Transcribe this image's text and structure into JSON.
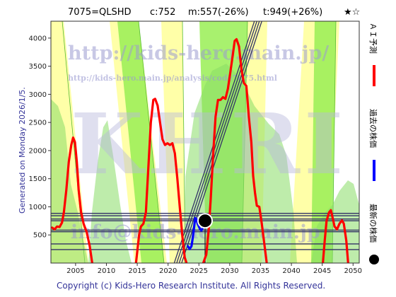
{
  "header": {
    "code": "7075=QLSHD",
    "current": "c:752",
    "min": "m:557(-26%)",
    "target": "t:949(+26%)",
    "rating": "★☆"
  },
  "side_text": "Generated on Monday 2026/1/5.",
  "footer": "Copyright (c) Kids-Hero Research Institute. All Rights Reserved.",
  "watermark": {
    "url": "http://kids-hero.main.jp/",
    "page_url": "http://kids-hero.main.jp/analysis/code7075.html",
    "email": "info@kids-hero.main.jp",
    "logo": "KHRI"
  },
  "legend": {
    "ai_forecast": "ＡＩ予測",
    "past_price": "過去の株価",
    "latest_price": "最新の株価"
  },
  "colors": {
    "forecast": "#ff0000",
    "past": "#0000ff",
    "latest": "#000000",
    "green_band": "#99ee55",
    "yellow_band": "#ffff99",
    "support_lines": "#333366"
  },
  "chart_data": {
    "type": "line",
    "xlim": [
      2001,
      2051
    ],
    "ylim": [
      0,
      4300
    ],
    "x_ticks": [
      2005,
      2010,
      2015,
      2020,
      2025,
      2030,
      2035,
      2040,
      2045,
      2050
    ],
    "y_ticks": [
      500,
      1000,
      1500,
      2000,
      2500,
      3000,
      3500,
      4000
    ],
    "latest_point": {
      "x": 2026.0,
      "y": 752
    },
    "horizontal_levels": [
      884,
      841,
      783,
      752,
      585,
      557,
      340,
      240
    ],
    "series": [
      {
        "name": "ＡＩ予測",
        "segments": [
          [
            [
              2001.2,
              630
            ],
            [
              2001.6,
              600
            ],
            [
              2002.0,
              650
            ],
            [
              2002.4,
              640
            ],
            [
              2002.8,
              720
            ],
            [
              2003.1,
              900
            ],
            [
              2003.5,
              1300
            ],
            [
              2003.9,
              1800
            ],
            [
              2004.3,
              2100
            ],
            [
              2004.6,
              2230
            ],
            [
              2004.9,
              2150
            ],
            [
              2005.2,
              1800
            ],
            [
              2005.5,
              1300
            ],
            [
              2005.9,
              900
            ],
            [
              2006.3,
              700
            ],
            [
              2006.8,
              550
            ],
            [
              2007.3,
              300
            ],
            [
              2007.7,
              0
            ]
          ],
          [
            [
              2014.8,
              0
            ],
            [
              2015.3,
              500
            ],
            [
              2015.6,
              650
            ],
            [
              2016.0,
              700
            ],
            [
              2016.4,
              900
            ],
            [
              2016.8,
              1700
            ],
            [
              2017.2,
              2500
            ],
            [
              2017.6,
              2900
            ],
            [
              2017.9,
              2920
            ],
            [
              2018.3,
              2800
            ],
            [
              2018.7,
              2500
            ],
            [
              2019.1,
              2200
            ],
            [
              2019.5,
              2100
            ],
            [
              2019.9,
              2130
            ],
            [
              2020.3,
              2100
            ],
            [
              2020.7,
              2130
            ],
            [
              2021.1,
              1950
            ],
            [
              2021.5,
              1500
            ],
            [
              2021.9,
              1000
            ],
            [
              2022.3,
              500
            ],
            [
              2022.7,
              100
            ],
            [
              2023.0,
              0
            ]
          ],
          [
            [
              2025.7,
              0
            ],
            [
              2026.2,
              150
            ],
            [
              2026.6,
              600
            ],
            [
              2026.9,
              1100
            ],
            [
              2027.3,
              1900
            ],
            [
              2027.7,
              2600
            ],
            [
              2028.1,
              2900
            ],
            [
              2028.5,
              2900
            ],
            [
              2028.9,
              2950
            ],
            [
              2029.3,
              2920
            ],
            [
              2029.7,
              3100
            ],
            [
              2030.1,
              3400
            ],
            [
              2030.5,
              3700
            ],
            [
              2030.8,
              3950
            ],
            [
              2031.1,
              3980
            ],
            [
              2031.5,
              3850
            ],
            [
              2031.9,
              3450
            ],
            [
              2032.3,
              3200
            ],
            [
              2032.7,
              3150
            ],
            [
              2033.1,
              2600
            ],
            [
              2033.5,
              2150
            ],
            [
              2033.8,
              1550
            ],
            [
              2034.1,
              1250
            ],
            [
              2034.4,
              1020
            ],
            [
              2034.8,
              1000
            ],
            [
              2035.2,
              700
            ],
            [
              2035.6,
              350
            ],
            [
              2036.0,
              0
            ]
          ],
          [
            [
              2045.1,
              0
            ],
            [
              2045.4,
              400
            ],
            [
              2045.7,
              750
            ],
            [
              2046.1,
              900
            ],
            [
              2046.4,
              940
            ],
            [
              2046.7,
              800
            ],
            [
              2047.0,
              650
            ],
            [
              2047.4,
              600
            ],
            [
              2047.8,
              700
            ],
            [
              2048.2,
              760
            ],
            [
              2048.5,
              700
            ],
            [
              2048.9,
              400
            ],
            [
              2049.2,
              0
            ]
          ]
        ]
      },
      {
        "name": "過去の株価",
        "segments": [
          [
            [
              2023.2,
              300
            ],
            [
              2023.5,
              250
            ],
            [
              2023.8,
              300
            ],
            [
              2024.0,
              450
            ],
            [
              2024.2,
              620
            ],
            [
              2024.4,
              800
            ],
            [
              2024.6,
              780
            ],
            [
              2024.8,
              700
            ],
            [
              2025.0,
              650
            ],
            [
              2025.2,
              600
            ],
            [
              2025.4,
              580
            ],
            [
              2025.6,
              620
            ],
            [
              2025.8,
              700
            ],
            [
              2026.0,
              752
            ]
          ]
        ]
      }
    ],
    "trend_lines": [
      [
        [
          2021.0,
          0
        ],
        [
          2034.0,
          4300
        ]
      ],
      [
        [
          2021.4,
          0
        ],
        [
          2034.4,
          4300
        ]
      ],
      [
        [
          2021.8,
          0
        ],
        [
          2034.8,
          4300
        ]
      ],
      [
        [
          2022.2,
          0
        ],
        [
          2035.2,
          4300
        ]
      ]
    ]
  }
}
